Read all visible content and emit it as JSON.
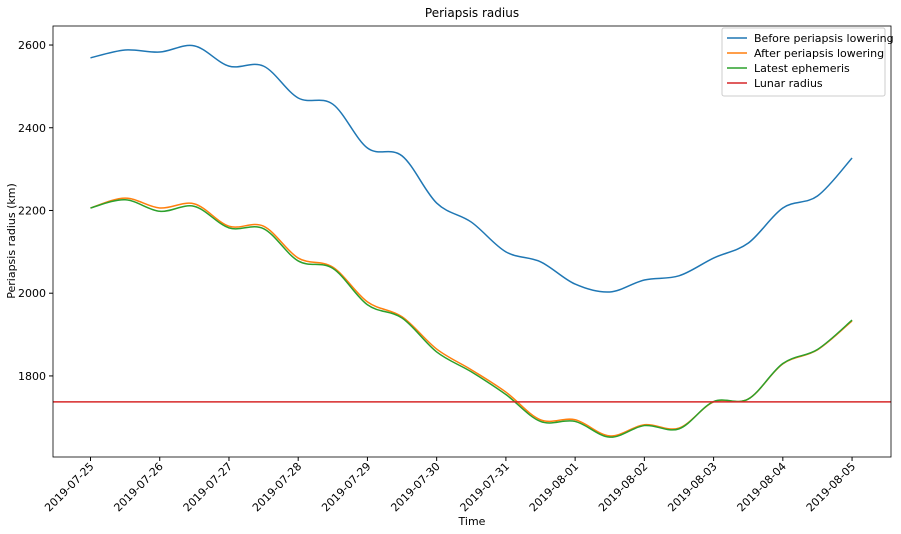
{
  "chart_data": {
    "type": "line",
    "title": "Periapsis radius",
    "xlabel": "Time",
    "ylabel": "Periapsis radius (km)",
    "x": [
      "2019-07-25T00:00",
      "2019-07-25T12:00",
      "2019-07-26T00:00",
      "2019-07-26T12:00",
      "2019-07-27T00:00",
      "2019-07-27T12:00",
      "2019-07-28T00:00",
      "2019-07-28T12:00",
      "2019-07-29T00:00",
      "2019-07-29T12:00",
      "2019-07-30T00:00",
      "2019-07-30T12:00",
      "2019-07-31T00:00",
      "2019-07-31T12:00",
      "2019-08-01T00:00",
      "2019-08-01T12:00",
      "2019-08-02T00:00",
      "2019-08-02T12:00",
      "2019-08-03T00:00",
      "2019-08-03T12:00",
      "2019-08-04T00:00",
      "2019-08-04T12:00",
      "2019-08-05T00:00"
    ],
    "series": [
      {
        "name": "Before periapsis lowering",
        "color": "#1f77b4",
        "values": [
          2569,
          2588,
          2583,
          2598,
          2549,
          2549,
          2472,
          2457,
          2351,
          2332,
          2218,
          2172,
          2100,
          2076,
          2022,
          2003,
          2032,
          2042,
          2085,
          2121,
          2206,
          2235,
          2327
        ]
      },
      {
        "name": "After periapsis lowering",
        "color": "#ff7f0e",
        "values": [
          2206,
          2230,
          2206,
          2216,
          2162,
          2162,
          2085,
          2063,
          1979,
          1943,
          1865,
          1815,
          1761,
          1694,
          1694,
          1655,
          1682,
          1674,
          1737,
          1744,
          1829,
          1863,
          1933
        ]
      },
      {
        "name": "Latest ephemeris",
        "color": "#2ca02c",
        "values": [
          2206,
          2226,
          2198,
          2210,
          2158,
          2156,
          2078,
          2060,
          1972,
          1940,
          1858,
          1810,
          1755,
          1690,
          1690,
          1652,
          1680,
          1672,
          1738,
          1744,
          1830,
          1864,
          1935
        ]
      },
      {
        "name": "Lunar radius",
        "color": "#d62728",
        "hline": 1737.4
      }
    ],
    "xlim": [
      "2019-07-24T11:00",
      "2019-08-05T13:30"
    ],
    "xticks": [
      "2019-07-25",
      "2019-07-26",
      "2019-07-27",
      "2019-07-28",
      "2019-07-29",
      "2019-07-30",
      "2019-07-31",
      "2019-08-01",
      "2019-08-02",
      "2019-08-03",
      "2019-08-04",
      "2019-08-05"
    ],
    "ylim": [
      1604,
      2646
    ],
    "yticks": [
      1800,
      2000,
      2200,
      2400,
      2600
    ],
    "grid": false,
    "legend": "upper right"
  }
}
